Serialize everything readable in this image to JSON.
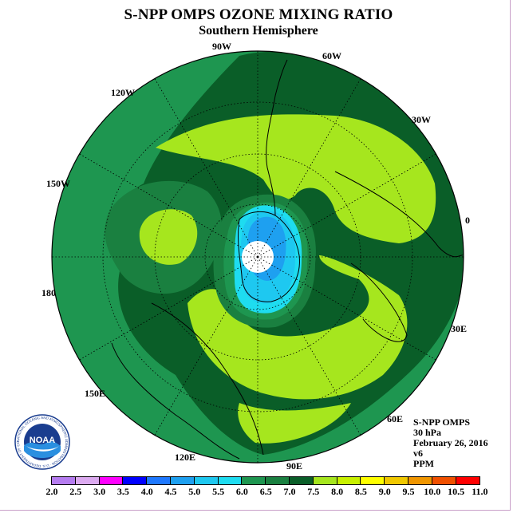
{
  "title": "S-NPP OMPS OZONE MIXING RATIO",
  "subtitle": "Southern Hemisphere",
  "longitude_labels": {
    "w90": "90W",
    "w60": "60W",
    "w30": "30W",
    "e0": "0",
    "e30": "30E",
    "e60": "60E",
    "e90": "90E",
    "e120": "120E",
    "e150": "150E",
    "e180": "180",
    "w150": "150W",
    "w120": "120W"
  },
  "info": {
    "instrument": "S-NPP OMPS",
    "level": "30 hPa",
    "date": "February 26, 2016",
    "version": "v6",
    "units": "PPM"
  },
  "logo": {
    "text": "NOAA",
    "ring_text": "NATIONAL OCEANIC AND ATMOSPHERIC ADMINISTRATION · U.S. DEPARTMENT OF COMMERCE"
  },
  "colorbar": {
    "ticks": [
      "2.0",
      "2.5",
      "3.0",
      "3.5",
      "4.0",
      "4.5",
      "5.0",
      "5.5",
      "6.0",
      "6.5",
      "7.0",
      "7.5",
      "8.0",
      "8.5",
      "9.0",
      "9.5",
      "10.0",
      "10.5",
      "11.0"
    ],
    "colors": [
      "#b57cf0",
      "#dcaaf0",
      "#ff00ff",
      "#0000ff",
      "#1e78ff",
      "#1ea0f0",
      "#1ec8f0",
      "#1edcf0",
      "#1e9650",
      "#1a8040",
      "#0a5e28",
      "#a6e61e",
      "#c8f000",
      "#ffff00",
      "#f0c800",
      "#f09600",
      "#f05000",
      "#ff0000",
      "#a0522d"
    ]
  },
  "field_colors": {
    "c6_0": "#1e9650",
    "c6_5": "#1a8040",
    "c7_0": "#0a5e28",
    "c7_5": "#a6e61e",
    "c8_0": "#c8f000",
    "c5_5": "#1edcf0",
    "c5_0": "#1ec8f0",
    "c4_5": "#1ea0f0",
    "pole": "#ffffff"
  }
}
